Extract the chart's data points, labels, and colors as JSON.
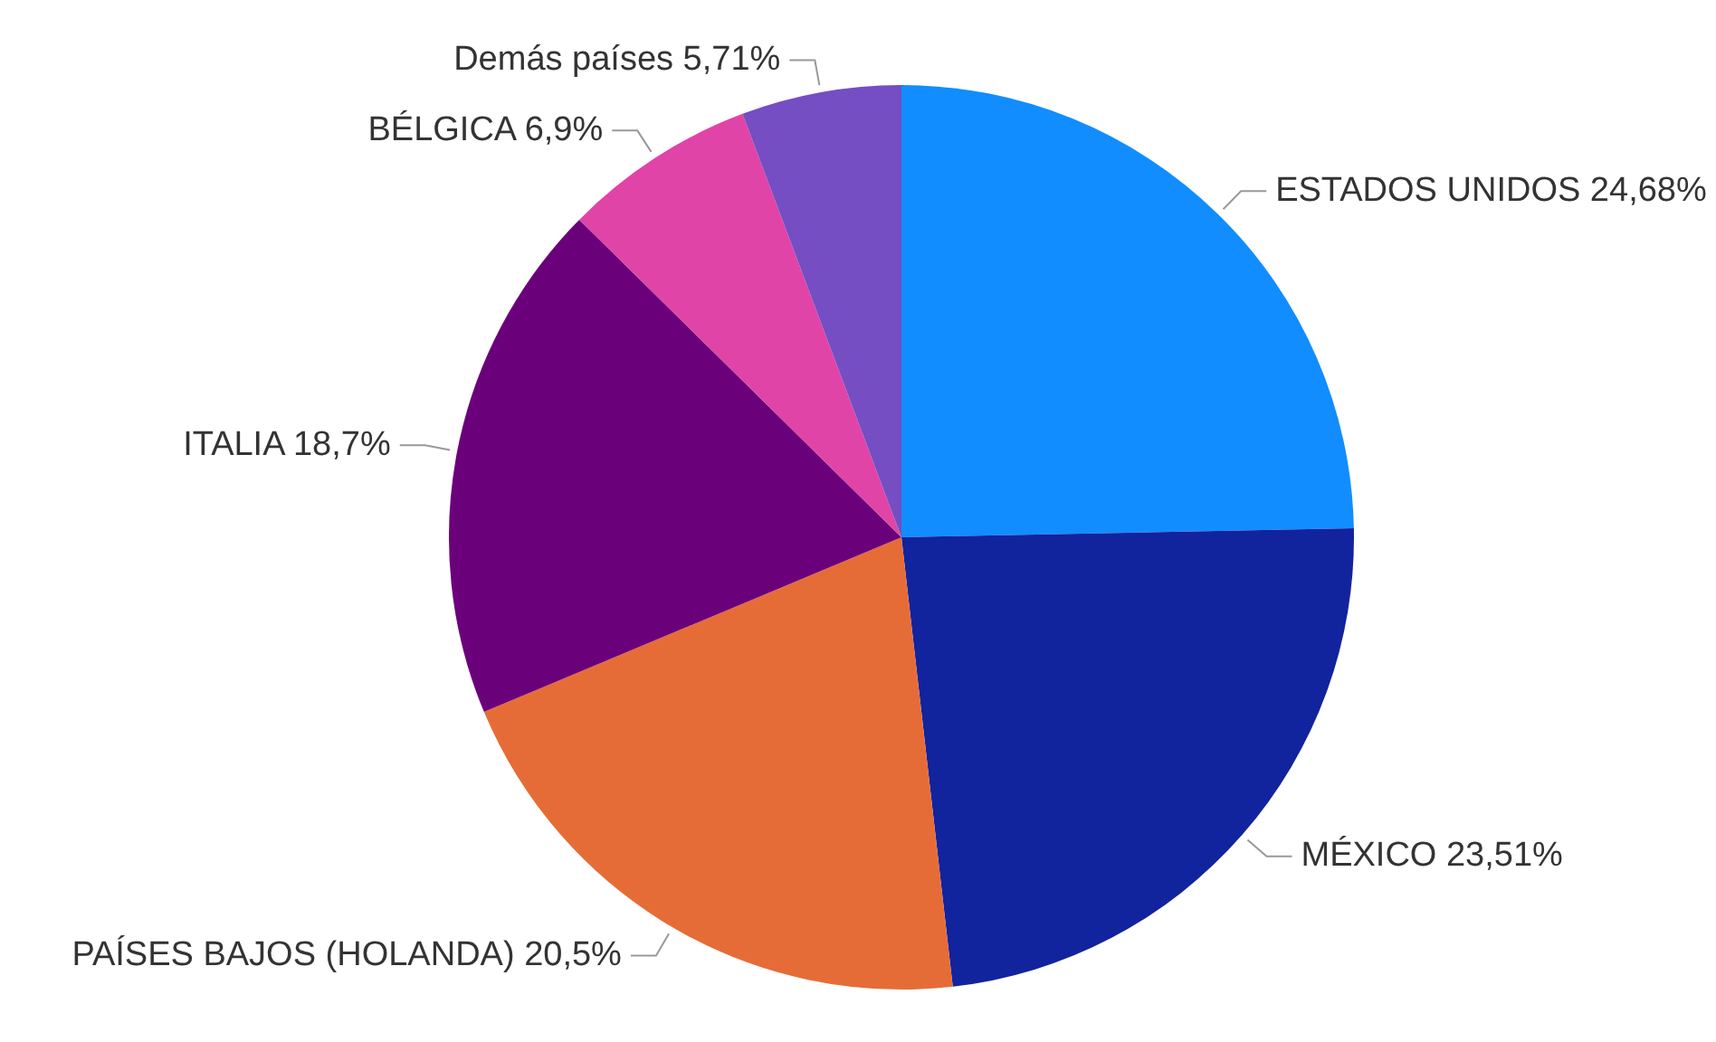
{
  "chart_data": {
    "type": "pie",
    "categories": [
      "ESTADOS UNIDOS",
      "MÉXICO",
      "PAÍSES BAJOS (HOLANDA)",
      "ITALIA",
      "BÉLGICA",
      "Demás países"
    ],
    "values": [
      24.68,
      23.51,
      20.5,
      18.7,
      6.9,
      5.71
    ],
    "value_labels": [
      "24,68%",
      "23,51%",
      "20,5%",
      "18,7%",
      "6,9%",
      "5,71%"
    ],
    "colors": [
      "#118dff",
      "#12239e",
      "#e66c37",
      "#6b007b",
      "#e044a7",
      "#744ec2"
    ],
    "legend": false
  }
}
